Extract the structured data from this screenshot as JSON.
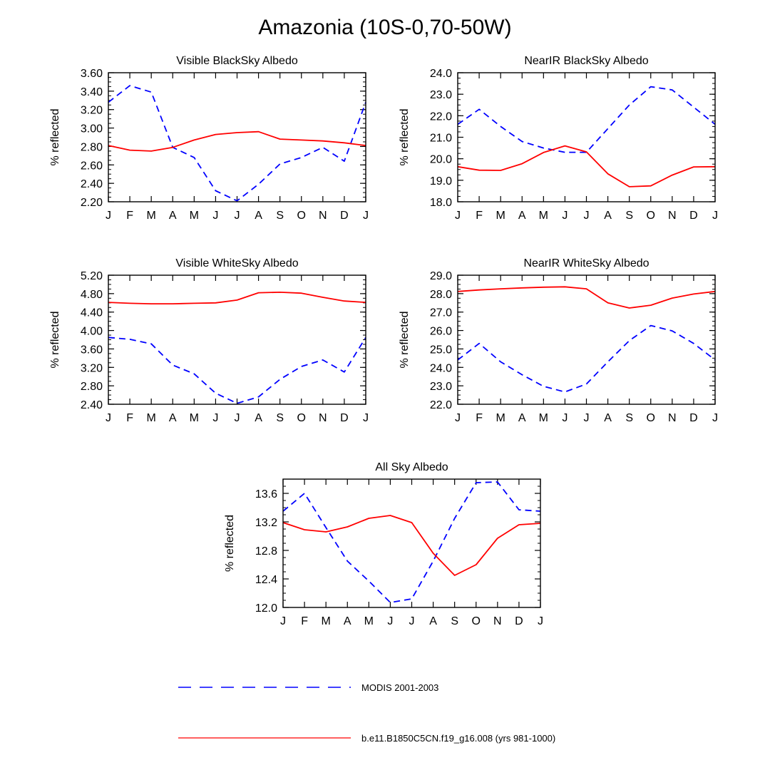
{
  "title": "Amazonia (10S-0,70-50W)",
  "colors": {
    "modis": "#0000ff",
    "model": "#ff0000",
    "axis": "#000000"
  },
  "legend": [
    {
      "label": "MODIS 2001-2003",
      "style": "dashed",
      "color": "#0000ff"
    },
    {
      "label": "b.e11.B1850C5CN.f19_g16.008 (yrs 981-1000)",
      "style": "solid",
      "color": "#ff0000"
    }
  ],
  "chart_data": [
    {
      "type": "line",
      "title": "Visible BlackSky Albedo",
      "ylabel": "% reflected",
      "categories": [
        "J",
        "F",
        "M",
        "A",
        "M",
        "J",
        "J",
        "A",
        "S",
        "O",
        "N",
        "D",
        "J"
      ],
      "yticks": [
        "2.20",
        "2.40",
        "2.60",
        "2.80",
        "3.00",
        "3.20",
        "3.40",
        "3.60"
      ],
      "ylim": [
        2.2,
        3.6
      ],
      "series": [
        {
          "name": "MODIS 2001-2003",
          "values": [
            3.28,
            3.46,
            3.39,
            2.79,
            2.68,
            2.32,
            2.21,
            2.39,
            2.61,
            2.68,
            2.79,
            2.64,
            3.28
          ]
        },
        {
          "name": "b.e11.B1850C5CN.f19_g16.008 (yrs 981-1000)",
          "values": [
            2.81,
            2.76,
            2.75,
            2.79,
            2.87,
            2.93,
            2.95,
            2.96,
            2.88,
            2.87,
            2.86,
            2.84,
            2.81
          ]
        }
      ]
    },
    {
      "type": "line",
      "title": "NearIR BlackSky Albedo",
      "ylabel": "% reflected",
      "categories": [
        "J",
        "F",
        "M",
        "A",
        "M",
        "J",
        "J",
        "A",
        "S",
        "O",
        "N",
        "D",
        "J"
      ],
      "yticks": [
        "18.0",
        "19.0",
        "20.0",
        "21.0",
        "22.0",
        "23.0",
        "24.0"
      ],
      "ylim": [
        18.0,
        24.0
      ],
      "series": [
        {
          "name": "MODIS 2001-2003",
          "values": [
            21.6,
            22.3,
            21.5,
            20.8,
            20.5,
            20.3,
            20.3,
            21.4,
            22.5,
            23.35,
            23.2,
            22.4,
            21.6
          ]
        },
        {
          "name": "b.e11.B1850C5CN.f19_g16.008 (yrs 981-1000)",
          "values": [
            19.63,
            19.47,
            19.46,
            19.77,
            20.29,
            20.6,
            20.32,
            19.3,
            18.7,
            18.74,
            19.24,
            19.62,
            19.63
          ]
        }
      ]
    },
    {
      "type": "line",
      "title": "Visible WhiteSky Albedo",
      "ylabel": "% reflected",
      "categories": [
        "J",
        "F",
        "M",
        "A",
        "M",
        "J",
        "J",
        "A",
        "S",
        "O",
        "N",
        "D",
        "J"
      ],
      "yticks": [
        "2.40",
        "2.80",
        "3.20",
        "3.60",
        "4.00",
        "4.40",
        "4.80",
        "5.20"
      ],
      "ylim": [
        2.4,
        5.2
      ],
      "series": [
        {
          "name": "MODIS 2001-2003",
          "values": [
            3.85,
            3.81,
            3.71,
            3.25,
            3.06,
            2.64,
            2.42,
            2.56,
            2.94,
            3.22,
            3.36,
            3.1,
            3.85
          ]
        },
        {
          "name": "b.e11.B1850C5CN.f19_g16.008 (yrs 981-1000)",
          "values": [
            4.61,
            4.59,
            4.58,
            4.58,
            4.59,
            4.6,
            4.66,
            4.82,
            4.83,
            4.81,
            4.72,
            4.64,
            4.61
          ]
        }
      ]
    },
    {
      "type": "line",
      "title": "NearIR WhiteSky Albedo",
      "ylabel": "% reflected",
      "categories": [
        "J",
        "F",
        "M",
        "A",
        "M",
        "J",
        "J",
        "A",
        "S",
        "O",
        "N",
        "D",
        "J"
      ],
      "yticks": [
        "22.0",
        "23.0",
        "24.0",
        "25.0",
        "26.0",
        "27.0",
        "28.0",
        "29.0"
      ],
      "ylim": [
        22.0,
        29.0
      ],
      "series": [
        {
          "name": "MODIS 2001-2003",
          "values": [
            24.4,
            25.3,
            24.3,
            23.6,
            22.97,
            22.67,
            23.1,
            24.3,
            25.45,
            26.27,
            25.98,
            25.3,
            24.4
          ]
        },
        {
          "name": "b.e11.B1850C5CN.f19_g16.008 (yrs 981-1000)",
          "values": [
            28.12,
            28.2,
            28.26,
            28.31,
            28.35,
            28.37,
            28.26,
            27.5,
            27.22,
            27.37,
            27.76,
            27.98,
            28.12
          ]
        }
      ]
    },
    {
      "type": "line",
      "title": "All Sky Albedo",
      "ylabel": "% reflected",
      "categories": [
        "J",
        "F",
        "M",
        "A",
        "M",
        "J",
        "J",
        "A",
        "S",
        "O",
        "N",
        "D",
        "J"
      ],
      "yticks": [
        "12.0",
        "12.4",
        "12.8",
        "13.2",
        "13.6"
      ],
      "ylim": [
        12.0,
        13.8
      ],
      "series": [
        {
          "name": "MODIS 2001-2003",
          "values": [
            13.35,
            13.6,
            13.12,
            12.65,
            12.37,
            12.07,
            12.12,
            12.65,
            13.25,
            13.75,
            13.76,
            13.37,
            13.35
          ]
        },
        {
          "name": "b.e11.B1850C5CN.f19_g16.008 (yrs 981-1000)",
          "values": [
            13.19,
            13.09,
            13.06,
            13.13,
            13.25,
            13.29,
            13.19,
            12.76,
            12.45,
            12.6,
            12.97,
            13.16,
            13.18
          ]
        }
      ]
    }
  ]
}
